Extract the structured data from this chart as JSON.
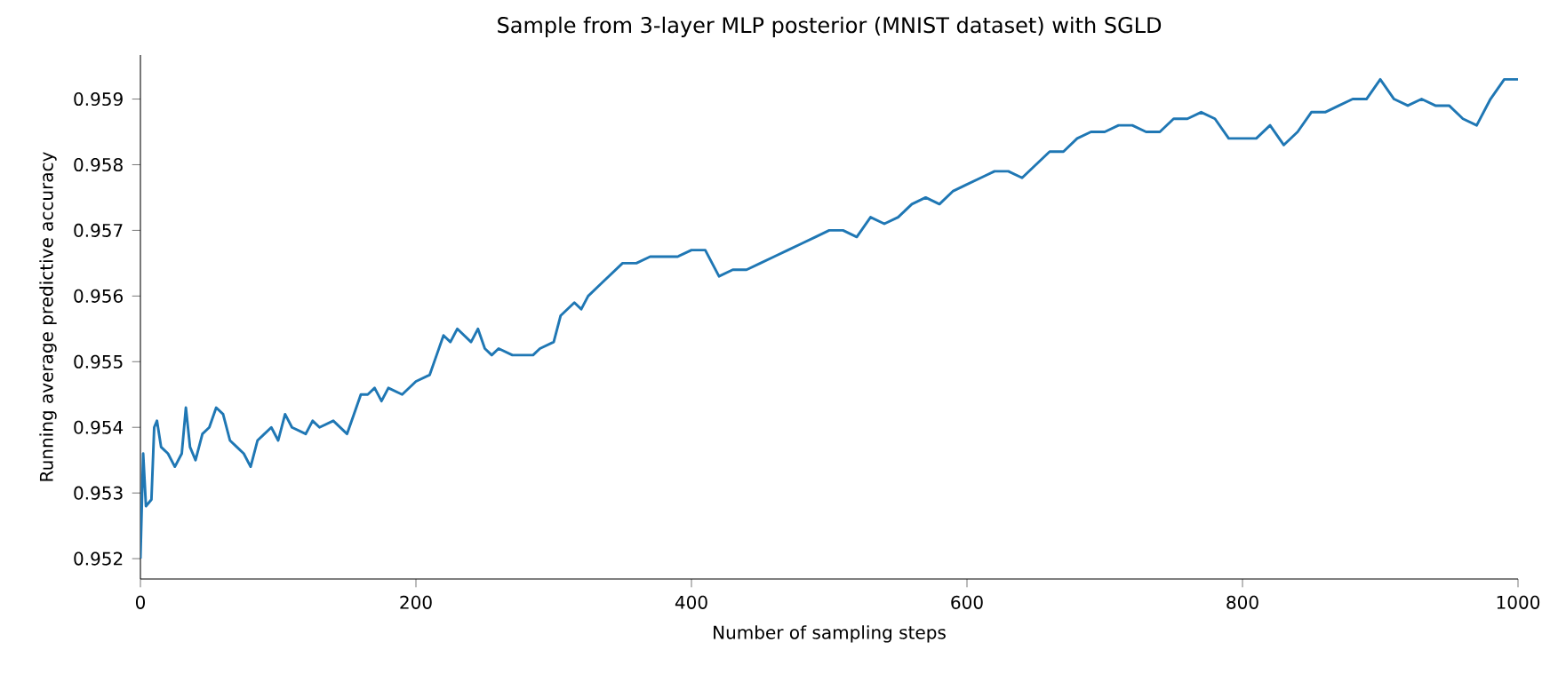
{
  "chart_data": {
    "type": "line",
    "title": "Sample from 3-layer MLP posterior (MNIST dataset) with SGLD",
    "xlabel": "Number of sampling steps",
    "ylabel": "Running average predictive accuracy",
    "x": [
      0,
      2,
      4,
      8,
      10,
      12,
      15,
      20,
      25,
      30,
      33,
      36,
      40,
      45,
      50,
      55,
      60,
      65,
      70,
      75,
      80,
      85,
      90,
      95,
      100,
      105,
      110,
      120,
      125,
      130,
      140,
      145,
      150,
      155,
      160,
      165,
      170,
      175,
      180,
      190,
      200,
      210,
      215,
      220,
      225,
      230,
      240,
      245,
      250,
      255,
      260,
      270,
      285,
      290,
      300,
      305,
      315,
      320,
      325,
      335,
      345,
      350,
      360,
      370,
      380,
      390,
      400,
      410,
      415,
      420,
      430,
      440,
      450,
      460,
      470,
      480,
      490,
      500,
      510,
      520,
      530,
      540,
      550,
      560,
      570,
      580,
      590,
      600,
      610,
      620,
      630,
      640,
      650,
      660,
      670,
      680,
      690,
      700,
      710,
      720,
      730,
      740,
      750,
      760,
      770,
      780,
      790,
      800,
      810,
      820,
      830,
      840,
      850,
      860,
      870,
      880,
      890,
      900,
      910,
      920,
      930,
      940,
      950,
      960,
      970,
      980,
      990,
      1000
    ],
    "series": [
      {
        "color": "#1f77b4",
        "values": [
          0.952,
          0.9536,
          0.9528,
          0.9529,
          0.954,
          0.9541,
          0.9537,
          0.9536,
          0.9534,
          0.9536,
          0.9543,
          0.9537,
          0.9535,
          0.9539,
          0.954,
          0.9543,
          0.9542,
          0.9538,
          0.9537,
          0.9536,
          0.9534,
          0.9538,
          0.9539,
          0.954,
          0.9538,
          0.9542,
          0.954,
          0.9539,
          0.9541,
          0.954,
          0.9541,
          0.954,
          0.9539,
          0.9542,
          0.9545,
          0.9545,
          0.9546,
          0.9544,
          0.9546,
          0.9545,
          0.9547,
          0.9548,
          0.9551,
          0.9554,
          0.9553,
          0.9555,
          0.9553,
          0.9555,
          0.9552,
          0.9551,
          0.9552,
          0.9551,
          0.9551,
          0.9552,
          0.9553,
          0.9557,
          0.9559,
          0.9558,
          0.956,
          0.9562,
          0.9564,
          0.9565,
          0.9565,
          0.9566,
          0.9566,
          0.9566,
          0.9567,
          0.9567,
          0.9565,
          0.9563,
          0.9564,
          0.9564,
          0.9565,
          0.9566,
          0.9567,
          0.9568,
          0.9569,
          0.957,
          0.957,
          0.9569,
          0.9572,
          0.9571,
          0.9572,
          0.9574,
          0.9575,
          0.9574,
          0.9576,
          0.9577,
          0.9578,
          0.9579,
          0.9579,
          0.9578,
          0.958,
          0.9582,
          0.9582,
          0.9584,
          0.9585,
          0.9585,
          0.9586,
          0.9586,
          0.9585,
          0.9585,
          0.9587,
          0.9587,
          0.9588,
          0.9587,
          0.9584,
          0.9584,
          0.9584,
          0.9586,
          0.9583,
          0.9585,
          0.9588,
          0.9588,
          0.9589,
          0.959,
          0.959,
          0.9593,
          0.959,
          0.9589,
          0.959,
          0.9589,
          0.9589,
          0.9587,
          0.9586,
          0.959,
          0.9593,
          0.9593
        ]
      }
    ],
    "xlim": [
      0,
      1000
    ],
    "xticks": [
      0,
      200,
      400,
      600,
      800,
      1000
    ],
    "ylim": [
      0.95169,
      0.95967
    ],
    "yticks": [
      0.952,
      0.953,
      0.954,
      0.955,
      0.956,
      0.957,
      0.958,
      0.959
    ],
    "marker": "none",
    "line_style": "solid"
  }
}
